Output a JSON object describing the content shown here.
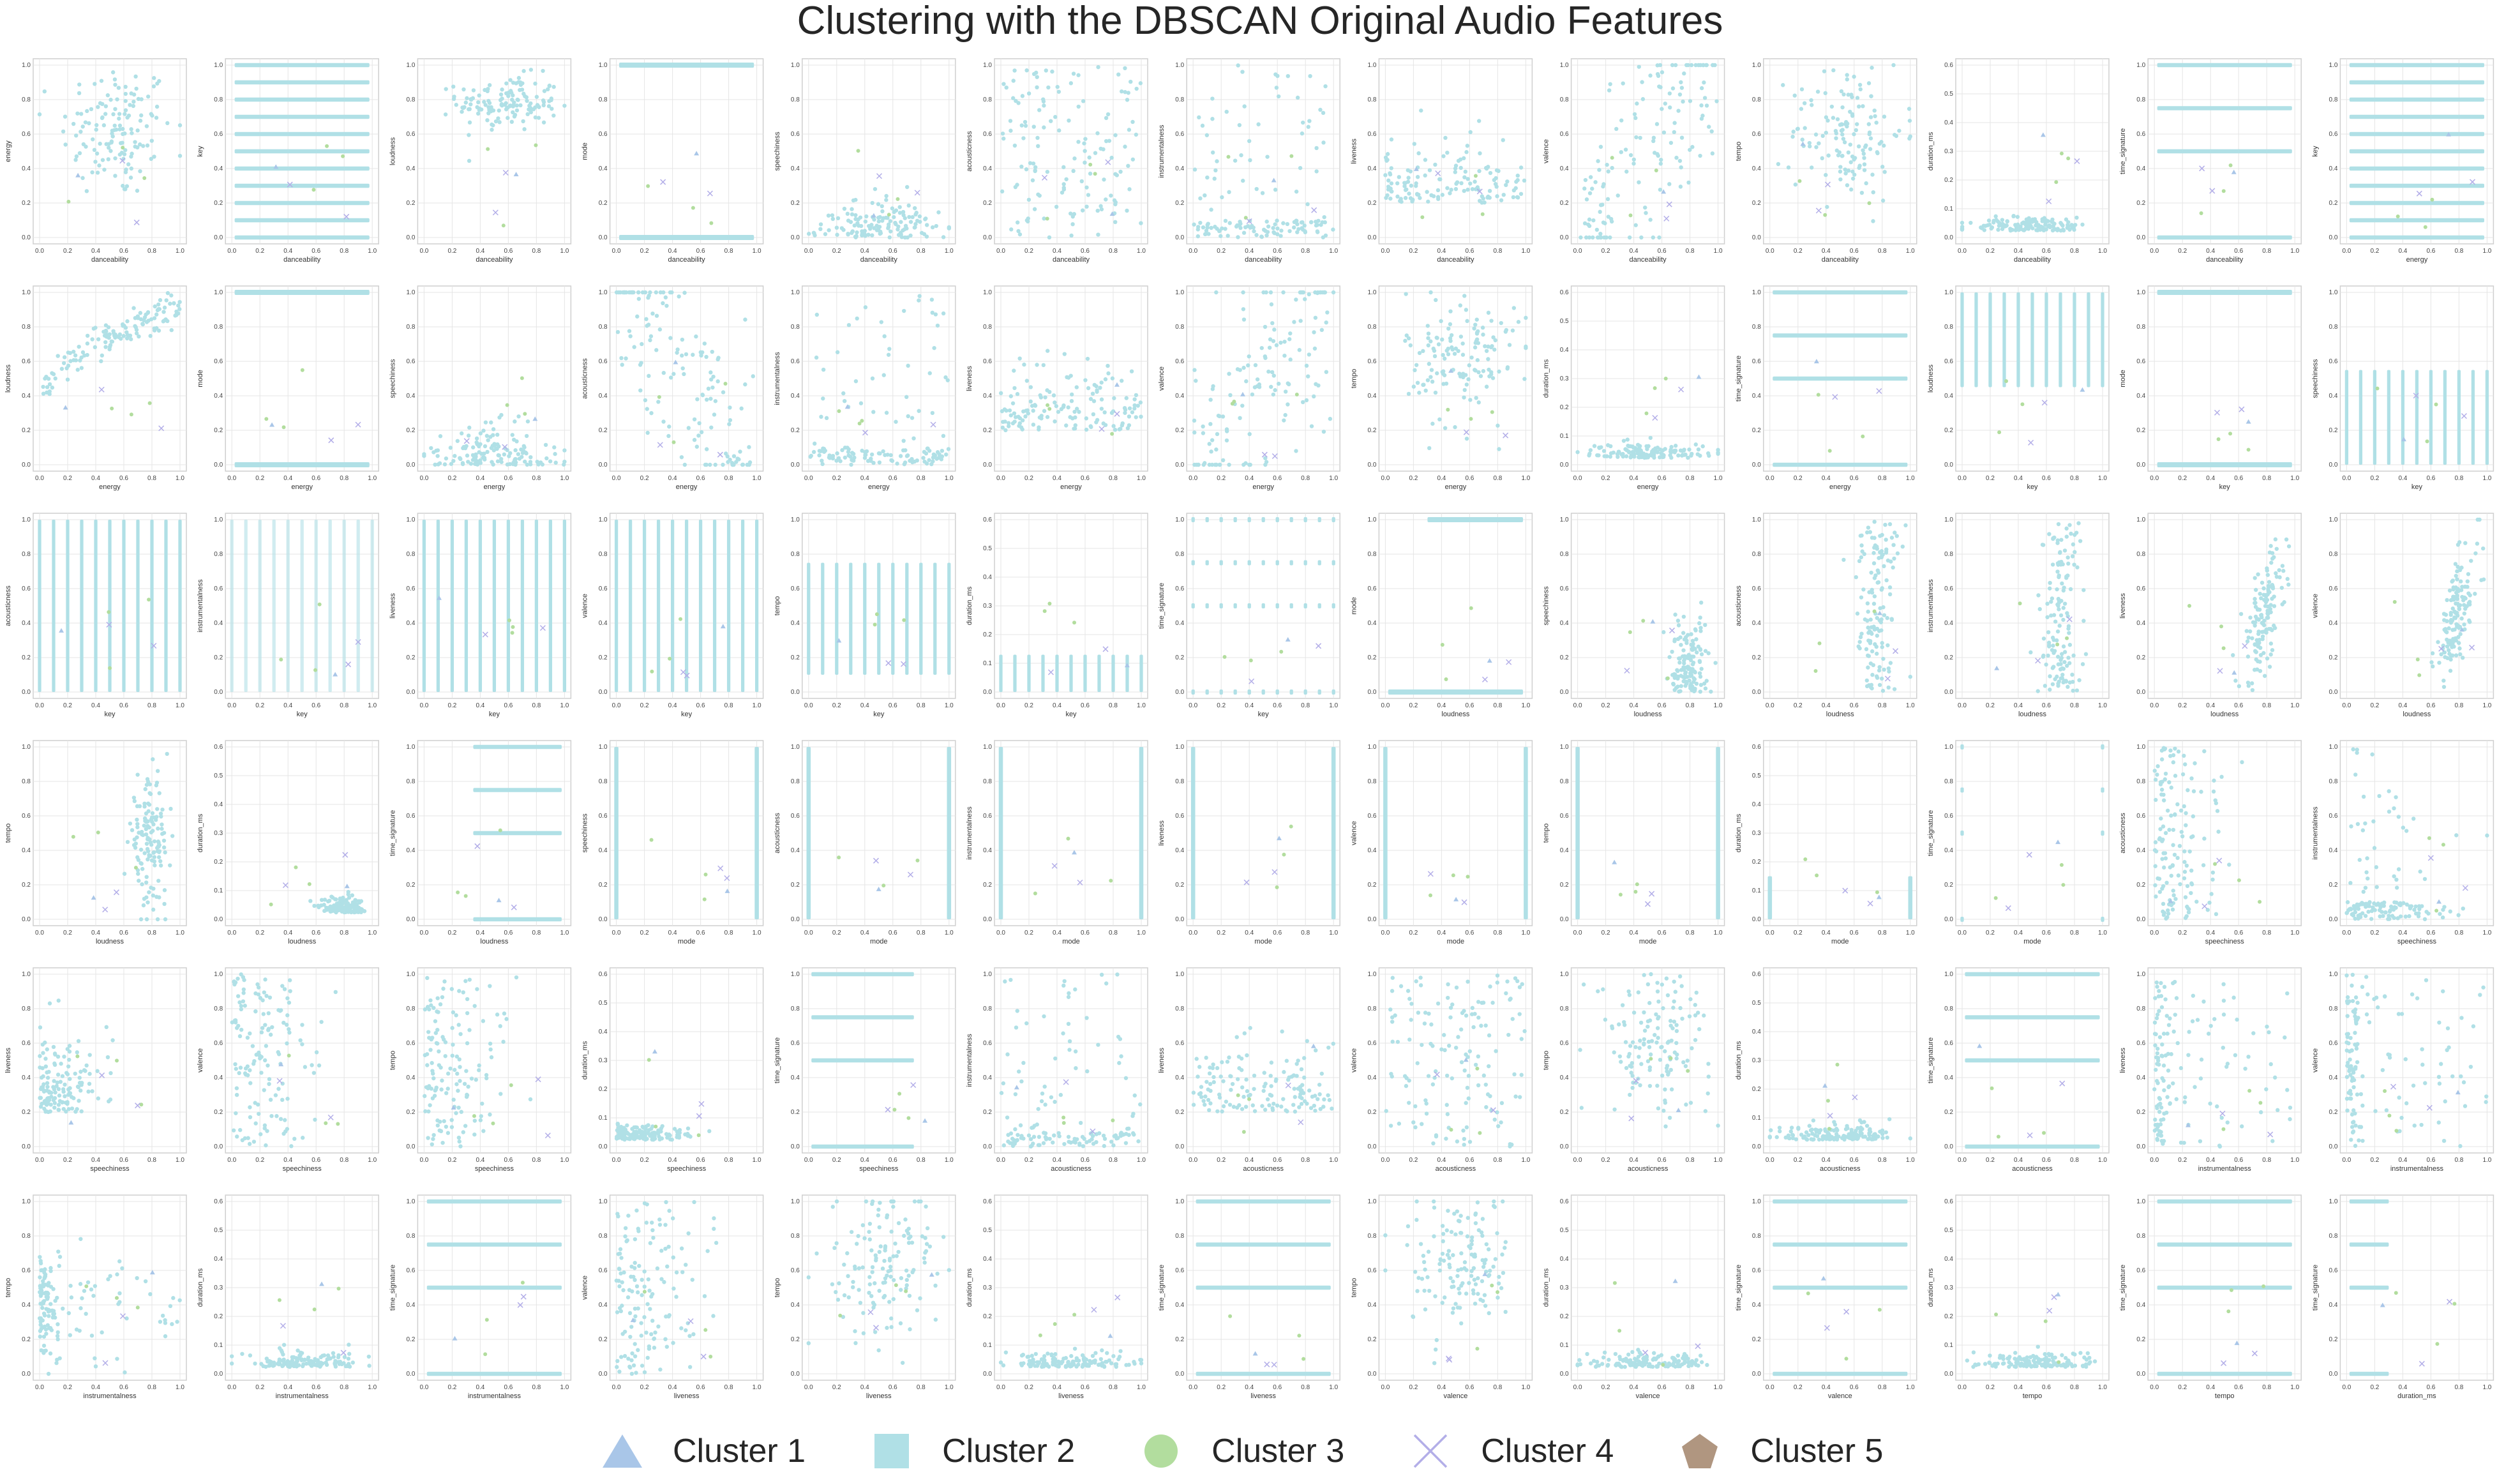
{
  "title": "Clustering with the DBSCAN Original Audio Features",
  "chart_data": {
    "type": "scatter",
    "title": "Clustering with the DBSCAN Original Audio Features",
    "grid": true,
    "legend_position": "bottom-center",
    "series": [
      {
        "name": "Cluster 1",
        "marker": "triangle",
        "color": "#a9c6e8"
      },
      {
        "name": "Cluster 2",
        "marker": "square",
        "color": "#b0e0e6"
      },
      {
        "name": "Cluster 3",
        "marker": "circle",
        "color": "#b2dd9e"
      },
      {
        "name": "Cluster 4",
        "marker": "x",
        "color": "#b3aee8"
      },
      {
        "name": "Cluster 5",
        "marker": "pentagon",
        "color": "#b09680"
      }
    ],
    "panels": [
      {
        "x": "danceability",
        "y": "energy",
        "pattern": "blob",
        "ylim": [
          0,
          1
        ]
      },
      {
        "x": "danceability",
        "y": "key",
        "pattern": "hbands",
        "ylim": [
          0,
          1
        ]
      },
      {
        "x": "danceability",
        "y": "loudness",
        "pattern": "upper",
        "ylim": [
          0,
          1
        ]
      },
      {
        "x": "danceability",
        "y": "mode",
        "pattern": "binary_h",
        "ylim": [
          0,
          1
        ]
      },
      {
        "x": "danceability",
        "y": "speechiness",
        "pattern": "mound",
        "ylim": [
          0,
          1
        ]
      },
      {
        "x": "danceability",
        "y": "acousticness",
        "pattern": "full",
        "ylim": [
          0,
          1
        ]
      },
      {
        "x": "danceability",
        "y": "instrumentalness",
        "pattern": "sparse",
        "ylim": [
          0,
          1
        ]
      },
      {
        "x": "danceability",
        "y": "liveness",
        "pattern": "lowblob",
        "ylim": [
          0,
          1
        ]
      },
      {
        "x": "danceability",
        "y": "valence",
        "pattern": "diag",
        "ylim": [
          0,
          1
        ]
      },
      {
        "x": "danceability",
        "y": "tempo",
        "pattern": "blob",
        "ylim": [
          0,
          1
        ]
      },
      {
        "x": "danceability",
        "y": "duration_ms",
        "pattern": "floor",
        "ylim": [
          0,
          0.6
        ]
      },
      {
        "x": "danceability",
        "y": "time_signature",
        "pattern": "ts_h",
        "ylim": [
          0,
          1
        ]
      },
      {
        "x": "energy",
        "y": "key",
        "pattern": "hbands",
        "ylim": [
          0,
          1
        ]
      },
      {
        "x": "energy",
        "y": "loudness",
        "pattern": "curve",
        "ylim": [
          0,
          1
        ]
      },
      {
        "x": "energy",
        "y": "mode",
        "pattern": "binary_h",
        "ylim": [
          0,
          1
        ]
      },
      {
        "x": "energy",
        "y": "speechiness",
        "pattern": "mound",
        "ylim": [
          0,
          1
        ]
      },
      {
        "x": "energy",
        "y": "acousticness",
        "pattern": "negdiag",
        "ylim": [
          0,
          1
        ]
      },
      {
        "x": "energy",
        "y": "instrumentalness",
        "pattern": "sparse",
        "ylim": [
          0,
          1
        ]
      },
      {
        "x": "energy",
        "y": "liveness",
        "pattern": "lowblob",
        "ylim": [
          0,
          1
        ]
      },
      {
        "x": "energy",
        "y": "valence",
        "pattern": "diag",
        "ylim": [
          0,
          1
        ]
      },
      {
        "x": "energy",
        "y": "tempo",
        "pattern": "blob",
        "ylim": [
          0,
          1
        ]
      },
      {
        "x": "energy",
        "y": "duration_ms",
        "pattern": "floor",
        "ylim": [
          0,
          0.6
        ]
      },
      {
        "x": "energy",
        "y": "time_signature",
        "pattern": "ts_h",
        "ylim": [
          0,
          1
        ]
      },
      {
        "x": "key",
        "y": "loudness",
        "pattern": "vbands_top",
        "ylim": [
          0,
          1
        ]
      },
      {
        "x": "key",
        "y": "mode",
        "pattern": "binary_h_dots",
        "ylim": [
          0,
          1
        ]
      },
      {
        "x": "key",
        "y": "speechiness",
        "pattern": "vbands_low",
        "ylim": [
          0,
          1
        ]
      },
      {
        "x": "key",
        "y": "acousticness",
        "pattern": "vbands",
        "ylim": [
          0,
          1
        ]
      },
      {
        "x": "key",
        "y": "instrumentalness",
        "pattern": "vbands_sparse",
        "ylim": [
          0,
          1
        ]
      },
      {
        "x": "key",
        "y": "liveness",
        "pattern": "vbands",
        "ylim": [
          0,
          1
        ]
      },
      {
        "x": "key",
        "y": "valence",
        "pattern": "vbands",
        "ylim": [
          0,
          1
        ]
      },
      {
        "x": "key",
        "y": "tempo",
        "pattern": "vbands_mid",
        "ylim": [
          0,
          1
        ]
      },
      {
        "x": "key",
        "y": "duration_ms",
        "pattern": "vbands_floor",
        "ylim": [
          0,
          0.6
        ]
      },
      {
        "x": "key",
        "y": "time_signature",
        "pattern": "grid_dots",
        "ylim": [
          0,
          1
        ]
      },
      {
        "x": "loudness",
        "y": "mode",
        "pattern": "binary_h_right",
        "ylim": [
          0,
          1
        ]
      },
      {
        "x": "loudness",
        "y": "speechiness",
        "pattern": "right_mound",
        "ylim": [
          0,
          1
        ]
      },
      {
        "x": "loudness",
        "y": "acousticness",
        "pattern": "right_wall",
        "ylim": [
          0,
          1
        ]
      },
      {
        "x": "loudness",
        "y": "instrumentalness",
        "pattern": "right_col",
        "ylim": [
          0,
          1
        ]
      },
      {
        "x": "loudness",
        "y": "liveness",
        "pattern": "right_rise",
        "ylim": [
          0,
          1
        ]
      },
      {
        "x": "loudness",
        "y": "valence",
        "pattern": "right_rise",
        "ylim": [
          0,
          1
        ]
      },
      {
        "x": "loudness",
        "y": "tempo",
        "pattern": "right_blob",
        "ylim": [
          0,
          1
        ]
      },
      {
        "x": "loudness",
        "y": "duration_ms",
        "pattern": "right_floor",
        "ylim": [
          0,
          0.6
        ]
      },
      {
        "x": "loudness",
        "y": "time_signature",
        "pattern": "ts_h_right",
        "ylim": [
          0,
          1
        ]
      },
      {
        "x": "mode",
        "y": "speechiness",
        "pattern": "binary_v",
        "ylim": [
          0,
          1
        ]
      },
      {
        "x": "mode",
        "y": "acousticness",
        "pattern": "binary_v",
        "ylim": [
          0,
          1
        ]
      },
      {
        "x": "mode",
        "y": "instrumentalness",
        "pattern": "binary_v",
        "ylim": [
          0,
          1
        ]
      },
      {
        "x": "mode",
        "y": "liveness",
        "pattern": "binary_v",
        "ylim": [
          0,
          1
        ]
      },
      {
        "x": "mode",
        "y": "valence",
        "pattern": "binary_v",
        "ylim": [
          0,
          1
        ]
      },
      {
        "x": "mode",
        "y": "tempo",
        "pattern": "binary_v",
        "ylim": [
          0,
          1
        ]
      },
      {
        "x": "mode",
        "y": "duration_ms",
        "pattern": "binary_v_low",
        "ylim": [
          0,
          0.6
        ]
      },
      {
        "x": "mode",
        "y": "time_signature",
        "pattern": "binary_grid",
        "ylim": [
          0,
          1
        ]
      },
      {
        "x": "speechiness",
        "y": "acousticness",
        "pattern": "left_fan",
        "ylim": [
          0,
          1
        ]
      },
      {
        "x": "speechiness",
        "y": "instrumentalness",
        "pattern": "left_L",
        "ylim": [
          0,
          1
        ]
      },
      {
        "x": "speechiness",
        "y": "liveness",
        "pattern": "left_blob",
        "ylim": [
          0,
          1
        ]
      },
      {
        "x": "speechiness",
        "y": "valence",
        "pattern": "left_full",
        "ylim": [
          0,
          1
        ]
      },
      {
        "x": "speechiness",
        "y": "tempo",
        "pattern": "left_full",
        "ylim": [
          0,
          1
        ]
      },
      {
        "x": "speechiness",
        "y": "duration_ms",
        "pattern": "left_floor",
        "ylim": [
          0,
          0.6
        ]
      },
      {
        "x": "speechiness",
        "y": "time_signature",
        "pattern": "ts_h_left",
        "ylim": [
          0,
          1
        ]
      },
      {
        "x": "acousticness",
        "y": "instrumentalness",
        "pattern": "sparse_edges",
        "ylim": [
          0,
          1
        ]
      },
      {
        "x": "acousticness",
        "y": "liveness",
        "pattern": "lowblob",
        "ylim": [
          0,
          1
        ]
      },
      {
        "x": "acousticness",
        "y": "valence",
        "pattern": "full",
        "ylim": [
          0,
          1
        ]
      },
      {
        "x": "acousticness",
        "y": "tempo",
        "pattern": "blob",
        "ylim": [
          0,
          1
        ]
      },
      {
        "x": "acousticness",
        "y": "duration_ms",
        "pattern": "floor",
        "ylim": [
          0,
          0.6
        ]
      },
      {
        "x": "acousticness",
        "y": "time_signature",
        "pattern": "ts_h",
        "ylim": [
          0,
          1
        ]
      },
      {
        "x": "instrumentalness",
        "y": "liveness",
        "pattern": "edge_cols",
        "ylim": [
          0,
          1
        ]
      },
      {
        "x": "instrumentalness",
        "y": "valence",
        "pattern": "edge_cols",
        "ylim": [
          0,
          1
        ]
      },
      {
        "x": "instrumentalness",
        "y": "tempo",
        "pattern": "edge_cols_mid",
        "ylim": [
          0,
          1
        ]
      },
      {
        "x": "instrumentalness",
        "y": "duration_ms",
        "pattern": "floor",
        "ylim": [
          0,
          0.6
        ]
      },
      {
        "x": "instrumentalness",
        "y": "time_signature",
        "pattern": "ts_h",
        "ylim": [
          0,
          1
        ]
      },
      {
        "x": "liveness",
        "y": "valence",
        "pattern": "left_full",
        "ylim": [
          0,
          1
        ]
      },
      {
        "x": "liveness",
        "y": "tempo",
        "pattern": "blob",
        "ylim": [
          0,
          1
        ]
      },
      {
        "x": "liveness",
        "y": "duration_ms",
        "pattern": "floor",
        "ylim": [
          0,
          0.6
        ]
      },
      {
        "x": "liveness",
        "y": "time_signature",
        "pattern": "ts_h",
        "ylim": [
          0,
          1
        ]
      },
      {
        "x": "valence",
        "y": "tempo",
        "pattern": "blob",
        "ylim": [
          0,
          1
        ]
      },
      {
        "x": "valence",
        "y": "duration_ms",
        "pattern": "floor",
        "ylim": [
          0,
          0.6
        ]
      },
      {
        "x": "valence",
        "y": "time_signature",
        "pattern": "ts_h",
        "ylim": [
          0,
          1
        ]
      },
      {
        "x": "tempo",
        "y": "duration_ms",
        "pattern": "floor",
        "ylim": [
          0,
          0.6
        ]
      },
      {
        "x": "tempo",
        "y": "time_signature",
        "pattern": "ts_h",
        "ylim": [
          0,
          1
        ]
      },
      {
        "x": "duration_ms",
        "y": "time_signature",
        "pattern": "ts_h_left_short",
        "ylim": [
          0,
          1
        ]
      }
    ]
  }
}
